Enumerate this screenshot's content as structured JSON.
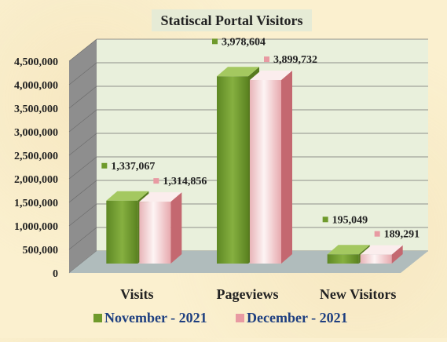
{
  "chart_data": {
    "type": "bar",
    "title": "Statiscal Portal Visitors",
    "categories": [
      "Visits",
      "Pageviews",
      "New Visitors"
    ],
    "series": [
      {
        "name": "November - 2021",
        "values": [
          1337067,
          3978604,
          195049
        ],
        "labels": [
          "1,337,067",
          "3,978,604",
          "195,049"
        ]
      },
      {
        "name": "December - 2021",
        "values": [
          1314856,
          3899732,
          189291
        ],
        "labels": [
          "1,314,856",
          "3,899,732",
          "189,291"
        ]
      }
    ],
    "yticks": [
      "0",
      "500,000",
      "1,000,000",
      "1,500,000",
      "2,000,000",
      "2,500,000",
      "3,000,000",
      "3,500,000",
      "4,000,000",
      "4,500,000"
    ],
    "ylim": [
      0,
      4500000
    ],
    "legend_position": "bottom",
    "grid": true,
    "three_d": true
  },
  "colors": {
    "series_fill": [
      "#78a032",
      "#f5d7d7"
    ],
    "series_side": [
      "#587a20",
      "#c46870"
    ],
    "series_top": [
      "#a4c860",
      "#fbeded"
    ],
    "legend_marker": [
      "#6f9a2c",
      "#e89aa2"
    ],
    "plot_back": "#e9f0dc",
    "plot_wall": "#8e8e8e",
    "floor": "#b0bcbc",
    "title_box": "#e6ebd6",
    "legend_text": "#1e3f80",
    "text": "#222222"
  }
}
